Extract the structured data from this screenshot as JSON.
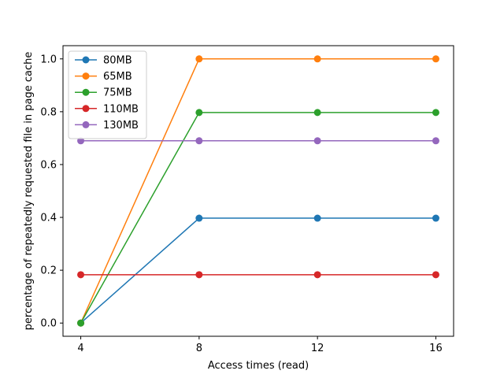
{
  "chart_data": {
    "type": "line",
    "title": "",
    "xlabel": "Access times (read)",
    "ylabel": "percentage of repeatedly requested file in page cache",
    "x": [
      4,
      8,
      12,
      16
    ],
    "x_ticks": [
      "4",
      "8",
      "12",
      "16"
    ],
    "y_ticks": [
      "0.0",
      "0.2",
      "0.4",
      "0.6",
      "0.8",
      "1.0"
    ],
    "xlim": [
      3.4,
      16.6
    ],
    "ylim": [
      -0.05,
      1.05
    ],
    "grid": false,
    "legend_position": "upper-left",
    "series": [
      {
        "name": "80MB",
        "color": "#1f77b4",
        "values": [
          0.0,
          0.397,
          0.397,
          0.397
        ]
      },
      {
        "name": "65MB",
        "color": "#ff7f0e",
        "values": [
          0.0,
          1.0,
          1.0,
          1.0
        ]
      },
      {
        "name": "75MB",
        "color": "#2ca02c",
        "values": [
          0.0,
          0.797,
          0.797,
          0.797
        ]
      },
      {
        "name": "110MB",
        "color": "#d62728",
        "values": [
          0.183,
          0.183,
          0.183,
          0.183
        ]
      },
      {
        "name": "130MB",
        "color": "#9467bd",
        "values": [
          0.69,
          0.69,
          0.69,
          0.69
        ]
      }
    ]
  }
}
